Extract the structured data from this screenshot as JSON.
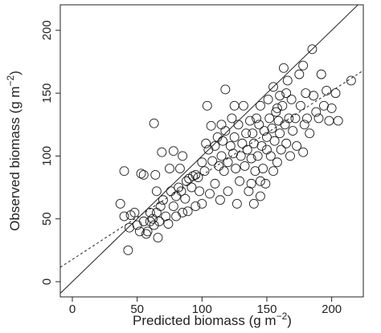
{
  "chart_data": {
    "type": "scatter",
    "x_label": {
      "text": "Predicted biomass (g m",
      "sup": "−2",
      "end": ")"
    },
    "y_label": {
      "text": "Observed biomass (g m",
      "sup": "−2",
      "end": ")"
    },
    "xlim": [
      -9.3,
      224.4
    ],
    "ylim": [
      -12.1,
      220.3
    ],
    "xticks": [
      0,
      50,
      100,
      150,
      200
    ],
    "yticks": [
      0,
      50,
      100,
      150,
      200
    ],
    "marker_color": "#222222",
    "x": [
      37,
      40,
      40,
      43,
      44,
      45,
      48,
      50,
      52,
      53,
      55,
      55,
      57,
      58,
      60,
      60,
      62,
      63,
      63,
      64,
      65,
      65,
      66,
      67,
      68,
      69,
      70,
      72,
      74,
      75,
      76,
      78,
      78,
      80,
      80,
      82,
      83,
      84,
      85,
      85,
      87,
      88,
      89,
      90,
      92,
      93,
      95,
      95,
      97,
      98,
      100,
      100,
      102,
      103,
      104,
      105,
      106,
      107,
      108,
      110,
      110,
      112,
      113,
      114,
      115,
      116,
      117,
      118,
      118,
      120,
      120,
      122,
      123,
      124,
      125,
      126,
      127,
      128,
      129,
      130,
      131,
      132,
      133,
      134,
      135,
      136,
      137,
      138,
      138,
      139,
      140,
      141,
      142,
      143,
      144,
      145,
      146,
      147,
      148,
      149,
      150,
      150,
      151,
      152,
      153,
      154,
      155,
      155,
      156,
      157,
      158,
      159,
      160,
      160,
      161,
      162,
      163,
      164,
      165,
      166,
      167,
      168,
      169,
      170,
      172,
      173,
      175,
      176,
      178,
      179,
      180,
      181,
      183,
      185,
      186,
      188,
      190,
      192,
      194,
      196,
      198,
      200,
      203,
      205,
      215,
      140,
      145,
      125,
      115,
      178,
      158,
      165,
      145
    ],
    "values": [
      62,
      88,
      52,
      25,
      43,
      53,
      55,
      45,
      40,
      86,
      85,
      48,
      38,
      40,
      55,
      48,
      50,
      126,
      45,
      85,
      72,
      55,
      35,
      48,
      60,
      103,
      65,
      52,
      46,
      90,
      72,
      104,
      60,
      68,
      52,
      75,
      90,
      72,
      100,
      55,
      66,
      80,
      56,
      82,
      75,
      84,
      85,
      60,
      83,
      72,
      95,
      62,
      88,
      110,
      140,
      105,
      70,
      124,
      96,
      108,
      78,
      115,
      92,
      65,
      100,
      112,
      88,
      120,
      153,
      95,
      72,
      108,
      130,
      102,
      115,
      90,
      62,
      125,
      80,
      100,
      110,
      140,
      92,
      118,
      105,
      72,
      128,
      98,
      78,
      118,
      110,
      88,
      130,
      100,
      125,
      140,
      108,
      90,
      120,
      78,
      115,
      105,
      145,
      130,
      100,
      122,
      88,
      155,
      112,
      135,
      95,
      128,
      148,
      118,
      105,
      140,
      170,
      125,
      110,
      160,
      130,
      100,
      145,
      120,
      130,
      108,
      165,
      140,
      172,
      125,
      150,
      130,
      118,
      185,
      148,
      135,
      130,
      165,
      140,
      152,
      128,
      138,
      150,
      128,
      160,
      62,
      68,
      140,
      125,
      103,
      138,
      150,
      80
    ],
    "reference_lines": [
      {
        "slope": 1,
        "intercept": 0,
        "style": "solid"
      },
      {
        "slope": 0.67,
        "intercept": 17.7,
        "style": "dashed"
      }
    ]
  }
}
